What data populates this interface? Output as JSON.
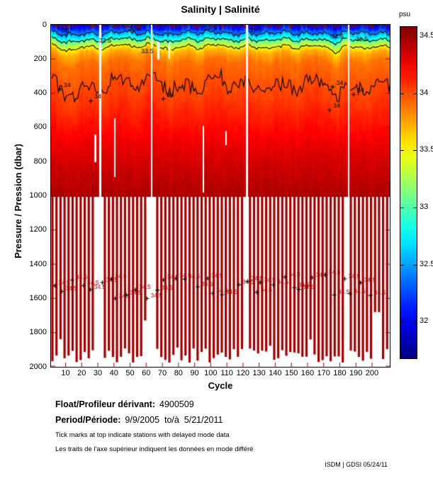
{
  "title": "Salinity | Salinité",
  "chart_data": {
    "type": "heatmap",
    "title": "Salinity | Salinité",
    "colorbar": {
      "label": "psu",
      "colormap": "jet",
      "vmin": 31.68,
      "vmax": 34.58,
      "ticks": [
        "34.5",
        "34",
        "33.5",
        "33",
        "32.5",
        "32"
      ],
      "tick_values": [
        34.5,
        34,
        33.5,
        33,
        32.5,
        32
      ]
    },
    "x_axis": {
      "label": "Cycle",
      "min": 1,
      "max": 211,
      "ticks": [
        10,
        20,
        30,
        40,
        50,
        60,
        70,
        80,
        90,
        100,
        110,
        120,
        130,
        140,
        150,
        160,
        170,
        180,
        190,
        200
      ]
    },
    "y_axis": {
      "label": "Pressure / Pression (dbar)",
      "min": 0,
      "max": 2000,
      "inverted": true,
      "ticks": [
        0,
        200,
        400,
        600,
        800,
        1000,
        1200,
        1400,
        1600,
        1800,
        2000
      ]
    },
    "fill_max_depth_dbar": 1000,
    "profile_line_depth_range_dbar": [
      1870,
      1975
    ],
    "salinity_vs_depth_profile": [
      [
        0,
        32.05
      ],
      [
        30,
        32.3
      ],
      [
        60,
        32.6
      ],
      [
        90,
        33.0
      ],
      [
        125,
        33.45
      ],
      [
        160,
        33.72
      ],
      [
        220,
        33.9
      ],
      [
        320,
        33.97
      ],
      [
        430,
        34.04
      ],
      [
        550,
        34.14
      ],
      [
        700,
        34.27
      ],
      [
        850,
        34.37
      ],
      [
        1000,
        34.45
      ],
      [
        1500,
        34.5
      ],
      [
        1950,
        34.56
      ]
    ],
    "contour_levels": [
      32.5,
      33,
      33.5,
      34
    ],
    "contour_labels": [
      {
        "text": "33",
        "cycle": 10,
        "depth": 35
      },
      {
        "text": "32.5",
        "cycle": 51,
        "depth": 20
      },
      {
        "text": "32.5",
        "cycle": 33,
        "depth": 90
      },
      {
        "text": "33.5",
        "cycle": 59,
        "depth": 155
      },
      {
        "text": "32.5",
        "cycle": 98,
        "depth": 18
      },
      {
        "text": "32.5",
        "cycle": 126,
        "depth": 33
      },
      {
        "text": "32.5",
        "cycle": 177,
        "depth": 68
      },
      {
        "text": "32.5",
        "cycle": 192,
        "depth": 82
      },
      {
        "text": "34",
        "cycle": 11,
        "depth": 352,
        "marker": true
      },
      {
        "text": "34",
        "cycle": 30,
        "depth": 420,
        "marker": true
      },
      {
        "text": "34",
        "cycle": 75,
        "depth": 408,
        "marker": true
      },
      {
        "text": "34",
        "cycle": 180,
        "depth": 338,
        "marker": true
      },
      {
        "text": "34",
        "cycle": 178,
        "depth": 474,
        "marker": true
      },
      {
        "text": "34",
        "cycle": 193,
        "depth": 383,
        "marker": true
      }
    ],
    "deep_contour_label": {
      "text": "34.5",
      "count": 34,
      "depth_band": [
        1470,
        1620
      ]
    },
    "missing_cycles": [
      31,
      63,
      122,
      185
    ],
    "partial_gaps": [
      {
        "cycle": 28,
        "depth": [
          640,
          800
        ]
      },
      {
        "cycle": 40,
        "depth": [
          545,
          890
        ]
      },
      {
        "cycle": 67,
        "depth": [
          95,
          200
        ]
      },
      {
        "cycle": 74,
        "depth": [
          100,
          195
        ]
      },
      {
        "cycle": 95,
        "depth": [
          590,
          980
        ]
      },
      {
        "cycle": 109,
        "depth": [
          620,
          700
        ]
      }
    ],
    "delayed_mode_tick_fraction": 0.5,
    "profile_bar_color": "#a00000"
  },
  "annotations": {
    "float_label": "Float/Profileur dérivant:",
    "float_value": "4900509",
    "period_label": "Period/Période:",
    "period_value": "9/9/2005  to/à  5/21/2011",
    "note_en": "Tick marks at top indicate stations with delayed mode data",
    "note_fr": "Les traits de l'axe supérieur indiquent les données en mode différé",
    "credit": "ISDM | GDSI  05/24/11"
  }
}
